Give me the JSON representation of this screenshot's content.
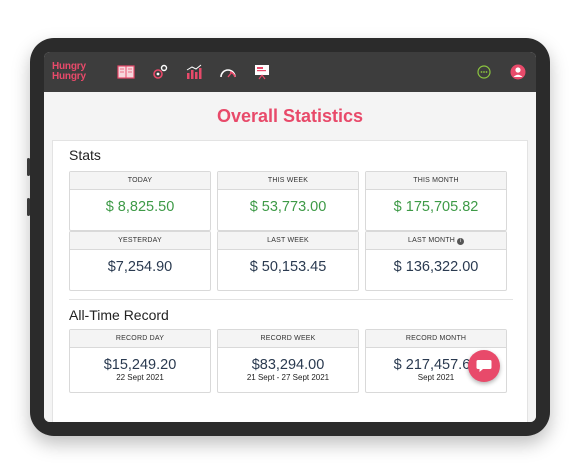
{
  "brand": {
    "line1": "Hungry",
    "line2": "Hungry",
    "color": "#e84a6a"
  },
  "nav": {
    "icons": [
      "menu-book-icon",
      "settings-gears-icon",
      "bar-chart-icon",
      "speedometer-icon",
      "presentation-icon"
    ],
    "right_icons": [
      "more-options-icon",
      "user-avatar-icon"
    ]
  },
  "page": {
    "title": "Overall Statistics"
  },
  "stats": {
    "title": "Stats",
    "cards": [
      {
        "label": "TODAY",
        "value": "$ 8,825.50",
        "color": "#3e9a47"
      },
      {
        "label": "THIS WEEK",
        "value": "$ 53,773.00",
        "color": "#3e9a47"
      },
      {
        "label": "THIS MONTH",
        "value": "$ 175,705.82",
        "color": "#3e9a47"
      },
      {
        "label": "YESTERDAY",
        "value": "$7,254.90",
        "color": "#2a3a50"
      },
      {
        "label": "LAST WEEK",
        "value": "$ 50,153.45",
        "color": "#2a3a50"
      },
      {
        "label": "LAST MONTH",
        "value": "$ 136,322.00",
        "color": "#2a3a50"
      }
    ]
  },
  "records": {
    "title": "All-Time Record",
    "cards": [
      {
        "label": "RECORD DAY",
        "value": "$15,249.20",
        "sub": "22 Sept 2021"
      },
      {
        "label": "RECORD WEEK",
        "value": "$83,294.00",
        "sub": "21 Sept - 27 Sept 2021"
      },
      {
        "label": "RECORD MONTH",
        "value": "$ 217,457.67",
        "sub": "Sept 2021"
      }
    ]
  },
  "chat": {
    "icon": "chat-bubble-icon"
  }
}
